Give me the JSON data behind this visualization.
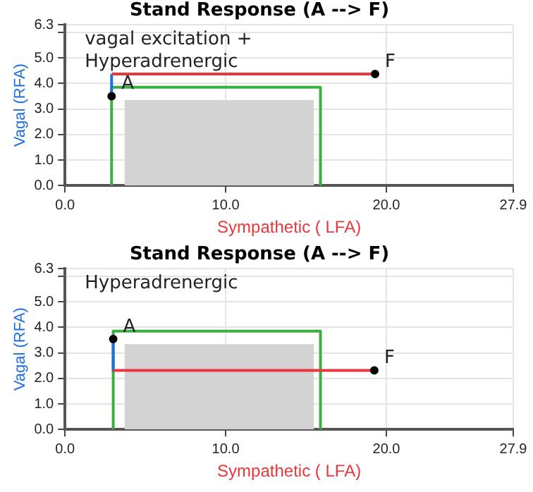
{
  "chart_data": [
    {
      "type": "line",
      "title": "Stand Response (A --> F)",
      "xlabel": "Sympathetic ( LFA)",
      "ylabel": "Vagal (RFA)",
      "annotations": [
        "vagal excitation +\nHyperadrenergic",
        {
          "text": "A",
          "x": 2.9,
          "y": 3.5
        },
        {
          "text": "F",
          "x": 19.3,
          "y": 4.37
        }
      ],
      "series": [
        {
          "type": "area",
          "color": "#d3d3d3",
          "x": [
            3.7,
            15.5
          ],
          "values": [
            3.35,
            3.35
          ]
        },
        {
          "type": "line",
          "color": "#3cb043",
          "x": [
            2.9,
            2.9,
            15.9,
            15.9
          ],
          "values": [
            0,
            3.85,
            3.85,
            0
          ]
        },
        {
          "type": "line",
          "color": "#1e6fe0",
          "x": [
            2.9,
            2.9
          ],
          "values": [
            3.5,
            4.37
          ]
        },
        {
          "type": "line",
          "color": "#e8383d",
          "x": [
            2.9,
            19.3
          ],
          "values": [
            4.37,
            4.37
          ]
        },
        {
          "type": "scatter",
          "color": "#000000",
          "marker": "circle",
          "x": [
            2.9,
            19.3
          ],
          "values": [
            3.5,
            4.37
          ]
        }
      ],
      "xlim": [
        0,
        27.9
      ],
      "ylim": [
        0,
        6.3
      ],
      "xticks": [
        {
          "value": 0,
          "label": "0.0"
        },
        {
          "value": 10,
          "label": "10.0"
        },
        {
          "value": 20,
          "label": "20.0"
        },
        27.9
      ],
      "yticks": [
        {
          "value": 0,
          "label": "0.0"
        },
        {
          "value": 1,
          "label": "1.0"
        },
        {
          "value": 2,
          "label": "2.0"
        },
        {
          "value": 3,
          "label": "3.0"
        },
        {
          "value": 4,
          "label": "4.0"
        },
        {
          "value": 5,
          "label": "5.0"
        },
        {
          "value": 6,
          "label": null
        },
        6.3
      ],
      "grid": true,
      "legend": false,
      "marker": "none"
    },
    {
      "type": "line",
      "title": "Stand Response (A --> F)",
      "xlabel": "Sympathetic ( LFA)",
      "ylabel": "Vagal (RFA)",
      "annotations": [
        "Hyperadrenergic",
        {
          "text": "A",
          "x": 3.0,
          "y": 3.54
        },
        {
          "text": "F",
          "x": 19.25,
          "y": 2.31
        }
      ],
      "series": [
        {
          "type": "area",
          "color": "#d3d3d3",
          "x": [
            3.7,
            15.5
          ],
          "values": [
            3.34,
            3.34
          ]
        },
        {
          "type": "line",
          "color": "#3cb043",
          "x": [
            3.0,
            3.0,
            15.9,
            15.9
          ],
          "values": [
            0,
            3.85,
            3.85,
            0
          ]
        },
        {
          "type": "line",
          "color": "#1e6fe0",
          "x": [
            3.0,
            3.0
          ],
          "values": [
            3.54,
            2.31
          ]
        },
        {
          "type": "line",
          "color": "#e8383d",
          "x": [
            3.0,
            19.25
          ],
          "values": [
            2.31,
            2.31
          ]
        },
        {
          "type": "scatter",
          "color": "#000000",
          "marker": "circle",
          "x": [
            3.0,
            19.25
          ],
          "values": [
            3.54,
            2.31
          ]
        }
      ],
      "xlim": [
        0,
        27.9
      ],
      "ylim": [
        0,
        6.3
      ],
      "xticks": [
        {
          "value": 0,
          "label": "0.0"
        },
        {
          "value": 10,
          "label": "10.0"
        },
        {
          "value": 20,
          "label": "20.0"
        },
        27.9
      ],
      "yticks": [
        {
          "value": 0,
          "label": "0.0"
        },
        {
          "value": 1,
          "label": "1.0"
        },
        {
          "value": 2,
          "label": "2.0"
        },
        {
          "value": 3,
          "label": "3.0"
        },
        {
          "value": 4,
          "label": "4.0"
        },
        {
          "value": 5,
          "label": "5.0"
        },
        {
          "value": 6,
          "label": null
        },
        6.3
      ],
      "grid": true,
      "legend": false,
      "marker": "none"
    }
  ]
}
